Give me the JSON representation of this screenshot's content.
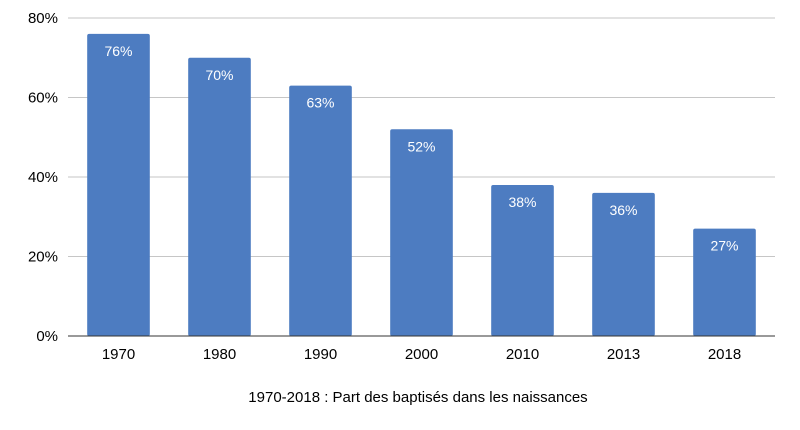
{
  "chart_data": {
    "type": "bar",
    "categories": [
      "1970",
      "1980",
      "1990",
      "2000",
      "2010",
      "2013",
      "2018"
    ],
    "values": [
      76,
      70,
      63,
      52,
      38,
      36,
      27
    ],
    "data_labels": [
      "76%",
      "70%",
      "63%",
      "52%",
      "38%",
      "36%",
      "27%"
    ],
    "title": "",
    "xlabel": "1970-2018 : Part des baptisés dans les naissances",
    "ylabel": "",
    "ylim": [
      0,
      80
    ],
    "yticks": [
      0,
      20,
      40,
      60,
      80
    ],
    "ytick_labels": [
      "0%",
      "20%",
      "40%",
      "60%",
      "80%"
    ],
    "grid": true,
    "legend": "none",
    "colors": {
      "bar": "#4d7cc1",
      "grid": "#c6c6c6",
      "axis": "#333333"
    }
  }
}
